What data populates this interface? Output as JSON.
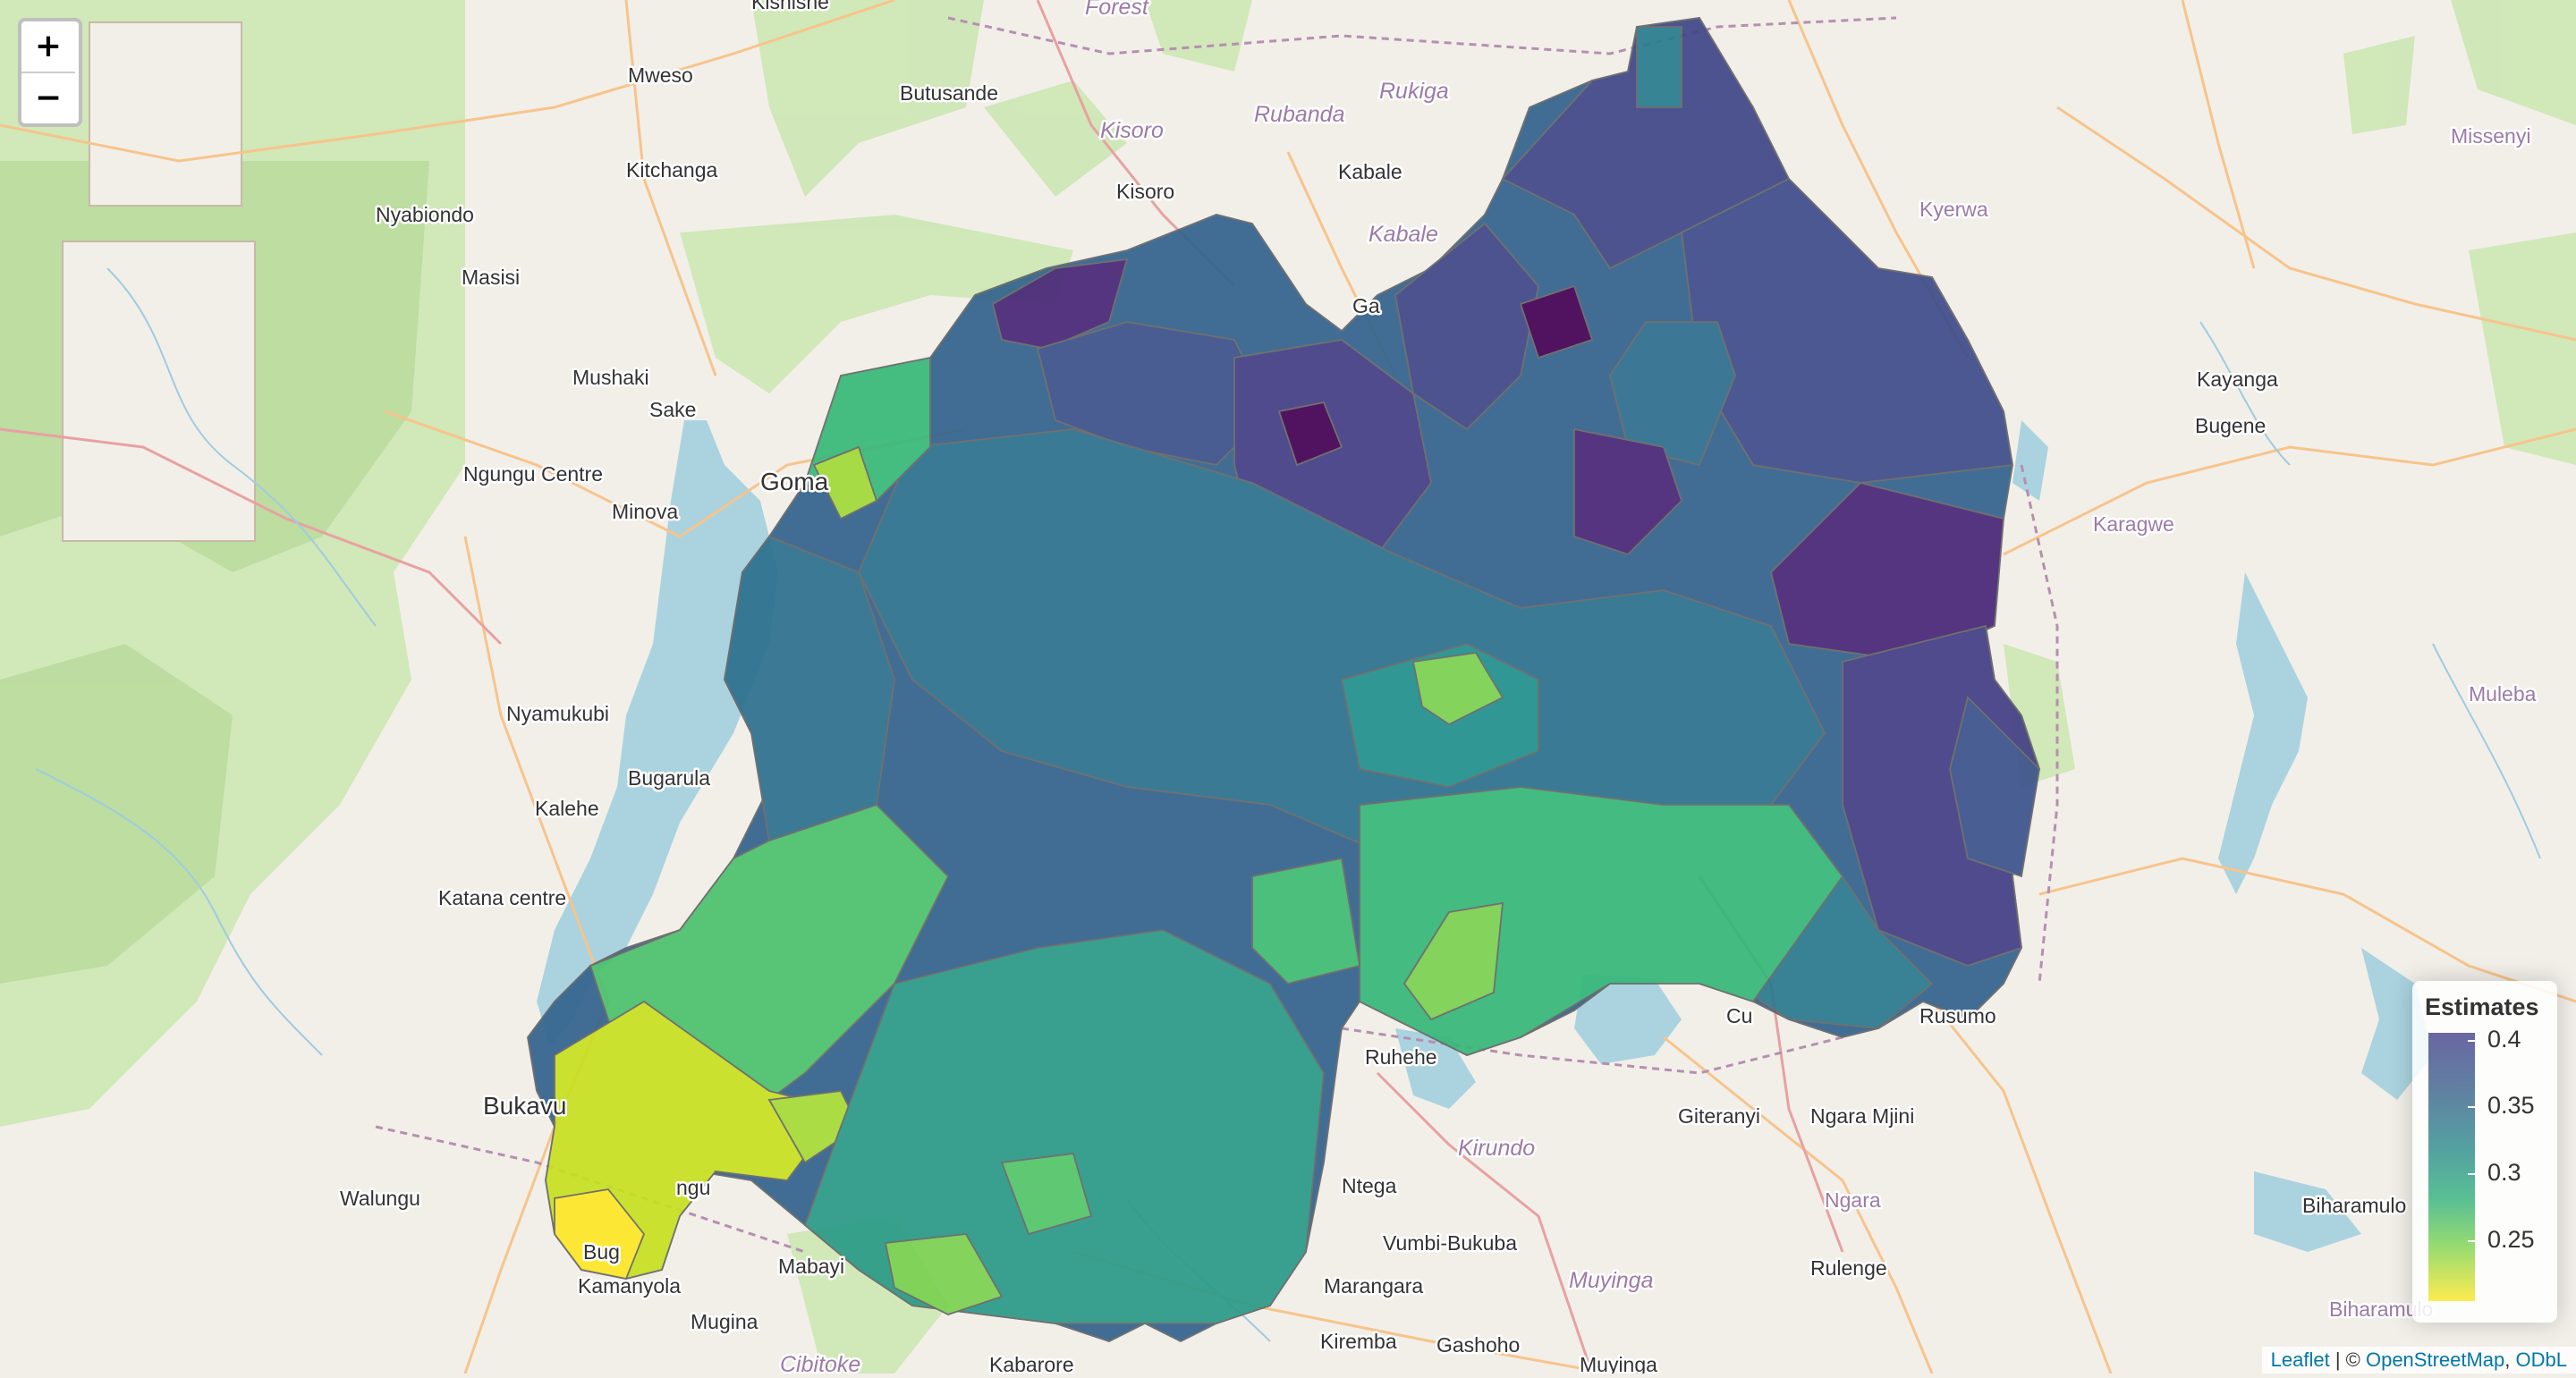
{
  "zoom": {
    "in_label": "+",
    "out_label": "−"
  },
  "legend": {
    "title": "Estimates",
    "labels": [
      "0.4",
      "0.35",
      "0.3",
      "0.25"
    ],
    "colors": [
      "#45418a",
      "#3a5f8c",
      "#2a8b8a",
      "#30b07a",
      "#7fd34e",
      "#fde725"
    ]
  },
  "attribution": {
    "leaflet": "Leaflet",
    "sep": " | © ",
    "osm": "OpenStreetMap",
    "comma": ", ",
    "odbl": "ODbL"
  },
  "places": [
    "Kishishe",
    "Forest",
    "Mweso",
    "Butusande",
    "Kisoro",
    "Rubanda",
    "Rukiga",
    "Kitchanga",
    "Kisoro",
    "Kabale",
    "Kabale",
    "Nyabiondo",
    "Masisi",
    "Mushaki",
    "Sake",
    "Ngungu Centre",
    "Minova",
    "Goma",
    "Ga",
    "Nyamukubi",
    "Bugarula",
    "Kalehe",
    "Katana centre",
    "Bukavu",
    "Walungu",
    "ngu",
    "Bug",
    "Kamanyola",
    "Mabayi",
    "Mugina",
    "Cibitoke",
    "Kabarore",
    "Ruhehe",
    "Kirundo",
    "Ntega",
    "Vumbi-Bukuba",
    "Marangara",
    "Kiremba",
    "Gashoho",
    "Muyinga",
    "Muyinga",
    "Giteranyi",
    "Ngara Mjini",
    "Ngara",
    "Rulenge",
    "Cu",
    "Rusumo",
    "Kyerwa",
    "Kayanga",
    "Bugene",
    "Karagwe",
    "Missenyi",
    "Muleba",
    "Biharamulo",
    "Biharamulo"
  ],
  "choropleth": {
    "metric": "Estimates",
    "regions": [
      {
        "value": 0.39
      },
      {
        "value": 0.4
      },
      {
        "value": 0.37
      },
      {
        "value": 0.36
      },
      {
        "value": 0.34
      },
      {
        "value": 0.33
      },
      {
        "value": 0.3
      },
      {
        "value": 0.28
      },
      {
        "value": 0.25
      }
    ]
  }
}
